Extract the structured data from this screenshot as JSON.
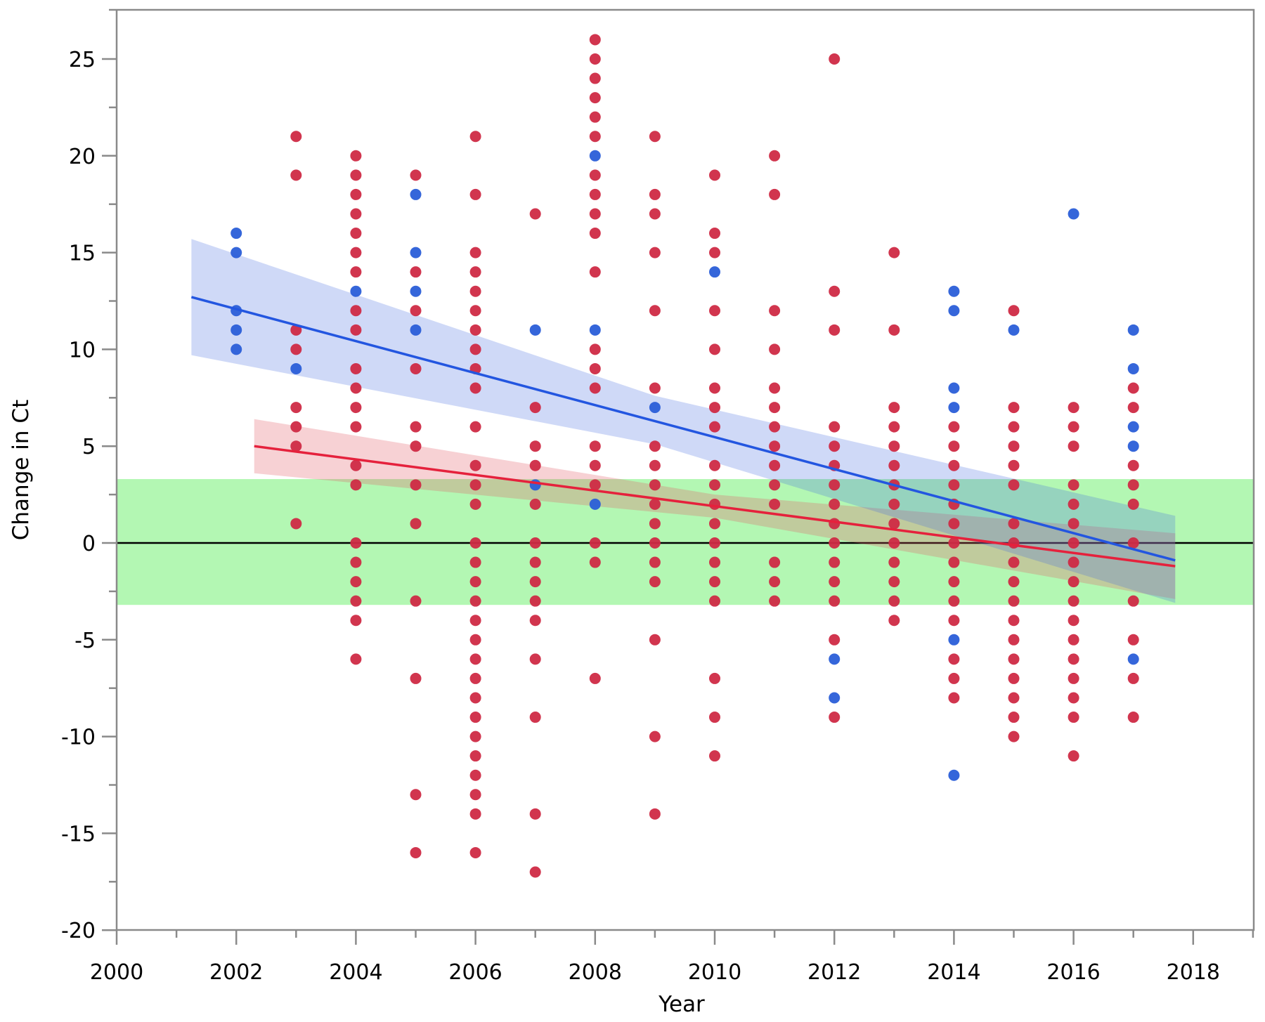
{
  "chart_data": {
    "type": "scatter",
    "title": "",
    "xlabel": "Year",
    "ylabel": "Change in Ct",
    "xlim": [
      2000,
      2019
    ],
    "ylim": [
      -20,
      27
    ],
    "x_ticks": [
      "2000",
      "2002",
      "2004",
      "2006",
      "2008",
      "2010",
      "2012",
      "2014",
      "2016",
      "2018"
    ],
    "y_ticks": [
      "25",
      "20",
      "15",
      "10",
      "5",
      "0",
      "-5",
      "-10",
      "-15",
      "-20"
    ],
    "grid": false,
    "colors": {
      "red": "#cf2a45",
      "blue": "#2a5ed8",
      "red_line": "#e5213c",
      "blue_line": "#2356e0",
      "green_band": "#b3f7b3"
    },
    "reference_band": {
      "low": -3.2,
      "high": 3.3
    },
    "reference_line": 0,
    "series": [
      {
        "name": "red",
        "points": [
          {
            "x": 2003,
            "y": [
              21,
              19,
              11,
              10,
              7,
              6,
              5,
              1
            ]
          },
          {
            "x": 2004,
            "y": [
              20,
              19,
              18,
              17,
              16,
              15,
              14,
              12,
              11,
              9,
              8,
              7,
              6,
              4,
              3,
              0,
              -1,
              -2,
              -3,
              -4,
              -6
            ]
          },
          {
            "x": 2005,
            "y": [
              19,
              14,
              12,
              9,
              6,
              5,
              3,
              1,
              -3,
              -7,
              -13,
              -16
            ]
          },
          {
            "x": 2006,
            "y": [
              21,
              18,
              15,
              14,
              13,
              12,
              11,
              10,
              9,
              8,
              6,
              4,
              3,
              2,
              0,
              -1,
              -2,
              -3,
              -4,
              -5,
              -6,
              -7,
              -8,
              -9,
              -10,
              -11,
              -12,
              -13,
              -14,
              -16
            ]
          },
          {
            "x": 2007,
            "y": [
              17,
              7,
              5,
              4,
              2,
              0,
              -1,
              -2,
              -3,
              -4,
              -6,
              -9,
              -14,
              -17
            ]
          },
          {
            "x": 2008,
            "y": [
              26,
              25,
              24,
              23,
              22,
              21,
              19,
              18,
              17,
              16,
              14,
              10,
              9,
              8,
              5,
              4,
              3,
              0,
              -1,
              -7
            ]
          },
          {
            "x": 2009,
            "y": [
              21,
              18,
              17,
              15,
              12,
              8,
              5,
              4,
              3,
              2,
              1,
              0,
              -1,
              -2,
              -5,
              -10,
              -14
            ]
          },
          {
            "x": 2010,
            "y": [
              19,
              16,
              15,
              12,
              10,
              8,
              7,
              6,
              4,
              3,
              2,
              1,
              0,
              -1,
              -2,
              -3,
              -7,
              -9,
              -11
            ]
          },
          {
            "x": 2011,
            "y": [
              20,
              18,
              12,
              10,
              8,
              7,
              6,
              5,
              4,
              3,
              2,
              -1,
              -2,
              -3
            ]
          },
          {
            "x": 2012,
            "y": [
              25,
              13,
              11,
              6,
              5,
              4,
              3,
              2,
              1,
              0,
              -1,
              -2,
              -3,
              -5,
              -9
            ]
          },
          {
            "x": 2013,
            "y": [
              15,
              11,
              7,
              6,
              5,
              4,
              3,
              2,
              1,
              0,
              -1,
              -2,
              -3,
              -4
            ]
          },
          {
            "x": 2014,
            "y": [
              6,
              5,
              4,
              3,
              2,
              1,
              0,
              -1,
              -2,
              -3,
              -4,
              -6,
              -7,
              -8
            ]
          },
          {
            "x": 2015,
            "y": [
              12,
              7,
              6,
              5,
              4,
              3,
              1,
              0,
              -1,
              -2,
              -3,
              -4,
              -5,
              -6,
              -7,
              -8,
              -9,
              -10
            ]
          },
          {
            "x": 2016,
            "y": [
              7,
              6,
              5,
              3,
              2,
              1,
              0,
              -1,
              -2,
              -3,
              -4,
              -5,
              -6,
              -7,
              -8,
              -9,
              -11
            ]
          },
          {
            "x": 2017,
            "y": [
              8,
              7,
              4,
              3,
              2,
              0,
              -3,
              -5,
              -7,
              -9
            ]
          }
        ],
        "fit": {
          "x": [
            2002.3,
            2017.7
          ],
          "y": [
            5.0,
            -1.2
          ]
        },
        "ci_band": [
          {
            "x": 2002.3,
            "low": 3.6,
            "high": 6.4
          },
          {
            "x": 2010,
            "low": 1.3,
            "high": 2.5
          },
          {
            "x": 2017.7,
            "low": -2.9,
            "high": 0.5
          }
        ]
      },
      {
        "name": "blue",
        "points": [
          {
            "x": 2002,
            "y": [
              16,
              15,
              12,
              11,
              10
            ]
          },
          {
            "x": 2003,
            "y": [
              9
            ]
          },
          {
            "x": 2004,
            "y": [
              13
            ]
          },
          {
            "x": 2005,
            "y": [
              18,
              15,
              13,
              11
            ]
          },
          {
            "x": 2007,
            "y": [
              11,
              3
            ]
          },
          {
            "x": 2008,
            "y": [
              20,
              11,
              2
            ]
          },
          {
            "x": 2009,
            "y": [
              7
            ]
          },
          {
            "x": 2010,
            "y": [
              14
            ]
          },
          {
            "x": 2012,
            "y": [
              -6,
              -8
            ]
          },
          {
            "x": 2014,
            "y": [
              13,
              12,
              8,
              7,
              -5,
              -12
            ]
          },
          {
            "x": 2015,
            "y": [
              11
            ]
          },
          {
            "x": 2016,
            "y": [
              17
            ]
          },
          {
            "x": 2017,
            "y": [
              11,
              9,
              6,
              5,
              -6
            ]
          }
        ],
        "fit": {
          "x": [
            2001.25,
            2017.7
          ],
          "y": [
            12.7,
            -0.9
          ]
        },
        "ci_band": [
          {
            "x": 2001.25,
            "low": 9.7,
            "high": 15.7
          },
          {
            "x": 2009,
            "low": 5.1,
            "high": 7.6
          },
          {
            "x": 2017.7,
            "low": -3.1,
            "high": 1.4
          }
        ]
      }
    ]
  }
}
